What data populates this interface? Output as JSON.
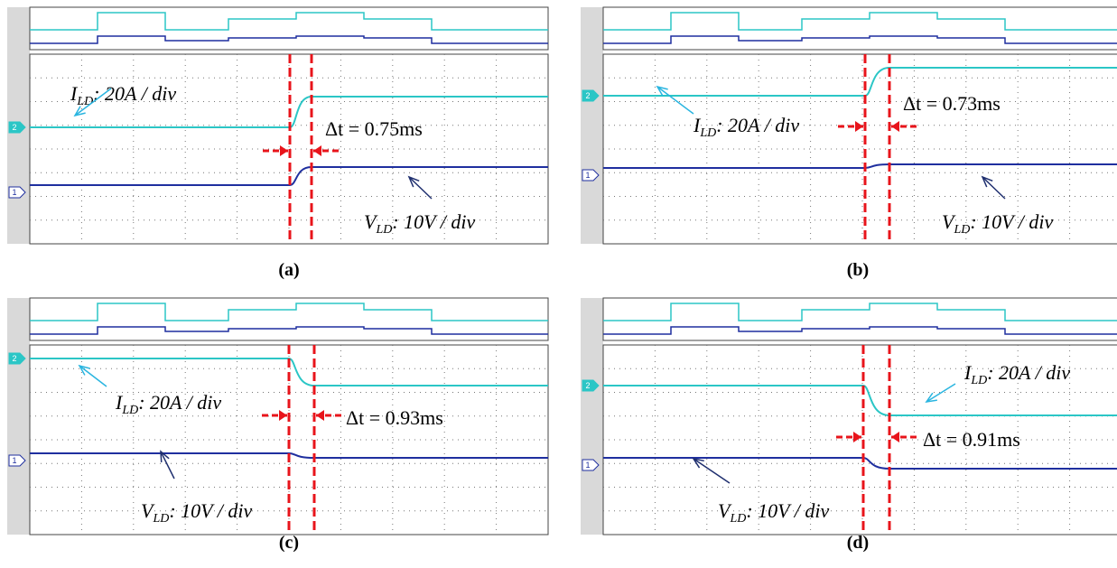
{
  "panels": [
    {
      "caption": "(a)",
      "current_label": {
        "symbol": "I",
        "subscript": "LD",
        "scale": ": 20A / div"
      },
      "voltage_label": {
        "symbol": "V",
        "subscript": "LD",
        "scale": ": 10V / div"
      },
      "delta_t": "Δt = 0.75ms",
      "channels": [
        "2",
        "1"
      ]
    },
    {
      "caption": "(b)",
      "current_label": {
        "symbol": "I",
        "subscript": "LD",
        "scale": ": 20A / div"
      },
      "voltage_label": {
        "symbol": "V",
        "subscript": "LD",
        "scale": ": 10V / div"
      },
      "delta_t": "Δt = 0.73ms",
      "channels": [
        "2",
        "1"
      ]
    },
    {
      "caption": "(c)",
      "current_label": {
        "symbol": "I",
        "subscript": "LD",
        "scale": ": 20A / div"
      },
      "voltage_label": {
        "symbol": "V",
        "subscript": "LD",
        "scale": ": 10V / div"
      },
      "delta_t": "Δt = 0.93ms",
      "channels": [
        "2",
        "1"
      ]
    },
    {
      "caption": "(d)",
      "current_label": {
        "symbol": "I",
        "subscript": "LD",
        "scale": ": 20A / div"
      },
      "voltage_label": {
        "symbol": "V",
        "subscript": "LD",
        "scale": ": 10V / div"
      },
      "delta_t": "Δt = 0.91ms",
      "channels": [
        "2",
        "1"
      ]
    }
  ]
}
